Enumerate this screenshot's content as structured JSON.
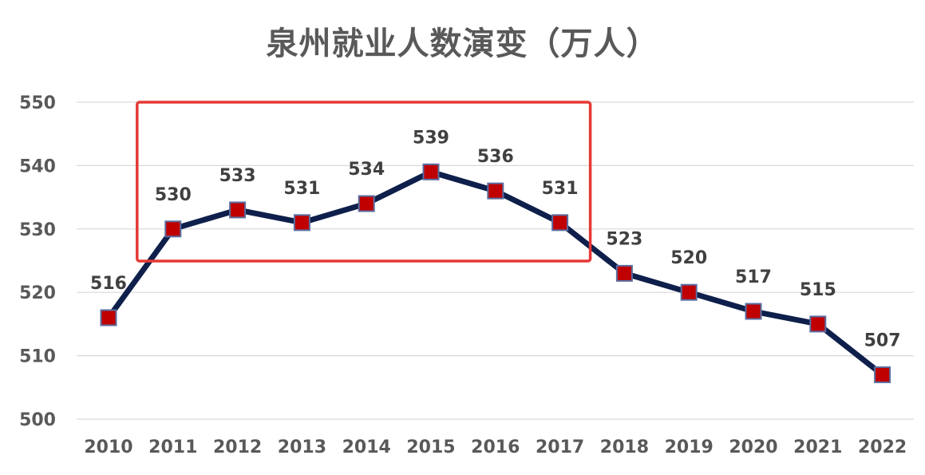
{
  "chart_data": {
    "type": "line",
    "title": "泉州就业人数演变（万人）",
    "xlabel": "",
    "ylabel": "",
    "categories": [
      "2010",
      "2011",
      "2012",
      "2013",
      "2014",
      "2015",
      "2016",
      "2017",
      "2018",
      "2019",
      "2020",
      "2021",
      "2022"
    ],
    "values": [
      516,
      530,
      533,
      531,
      534,
      539,
      536,
      531,
      523,
      520,
      517,
      515,
      507
    ],
    "data_labels": [
      "516",
      "530",
      "533",
      "531",
      "534",
      "539",
      "536",
      "531",
      "523",
      "520",
      "517",
      "515",
      "507"
    ],
    "ylim": [
      500,
      550
    ],
    "yticks": [
      "500",
      "510",
      "520",
      "530",
      "540",
      "550"
    ],
    "grid": true,
    "legend": "none",
    "highlight": {
      "from": "2011",
      "to": "2017"
    },
    "colors": {
      "line": "#0f1f4b",
      "marker_fill": "#c00000",
      "marker_border": "#5a6ea0",
      "highlight_box": "#e53935",
      "grid": "#d9d9d9",
      "text": "#595959"
    }
  }
}
